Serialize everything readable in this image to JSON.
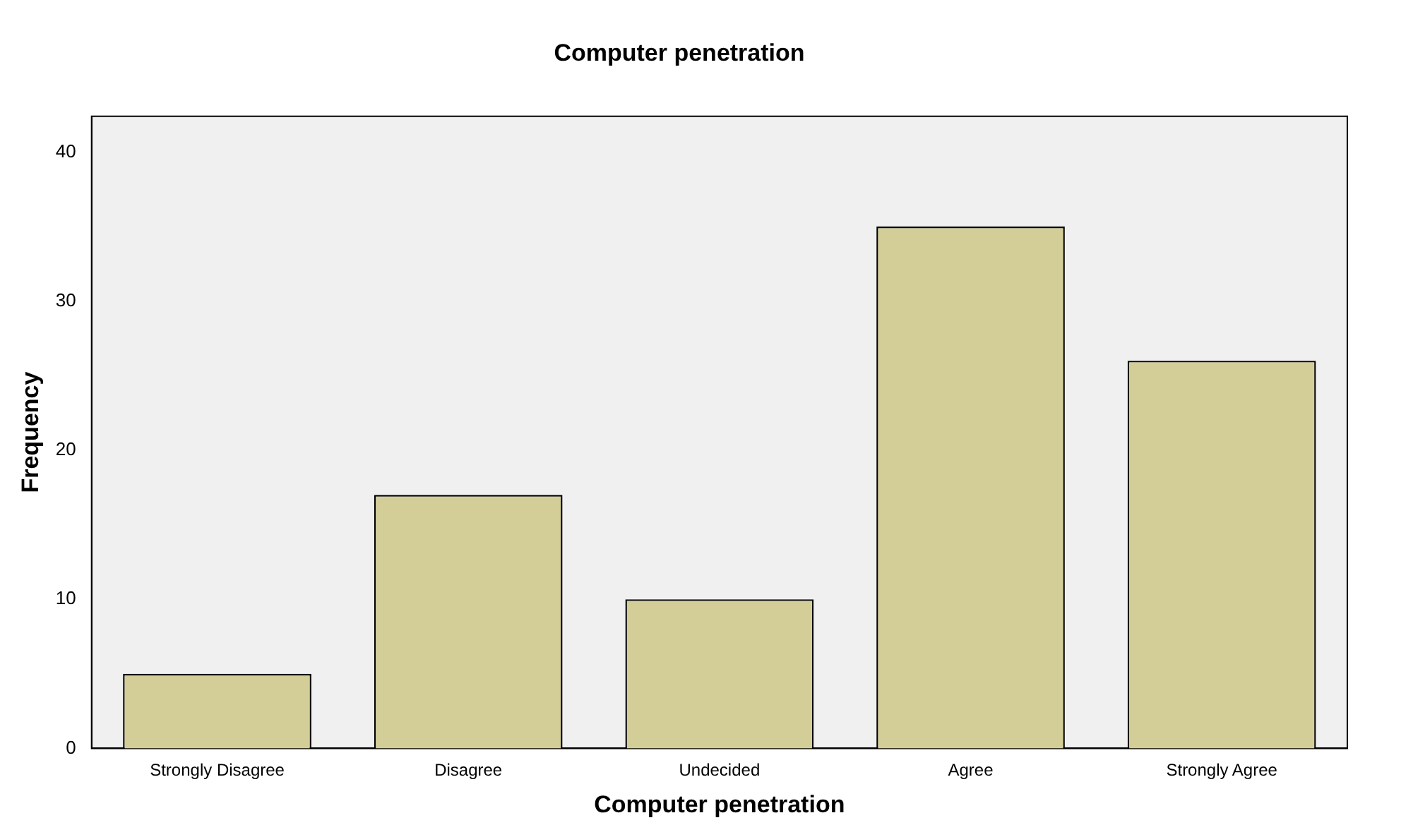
{
  "chart_data": {
    "type": "bar",
    "title": "Computer penetration",
    "xlabel": "Computer penetration",
    "ylabel": "Frequency",
    "categories": [
      "Strongly Disagree",
      "Disagree",
      "Undecided",
      "Agree",
      "Strongly Agree"
    ],
    "values": [
      5,
      17,
      10,
      35,
      26
    ],
    "color": "#d3ce97",
    "ylim": [
      0,
      42.4
    ],
    "yticks": [
      0,
      10,
      20,
      30,
      40
    ],
    "grid": false,
    "legend": false
  }
}
